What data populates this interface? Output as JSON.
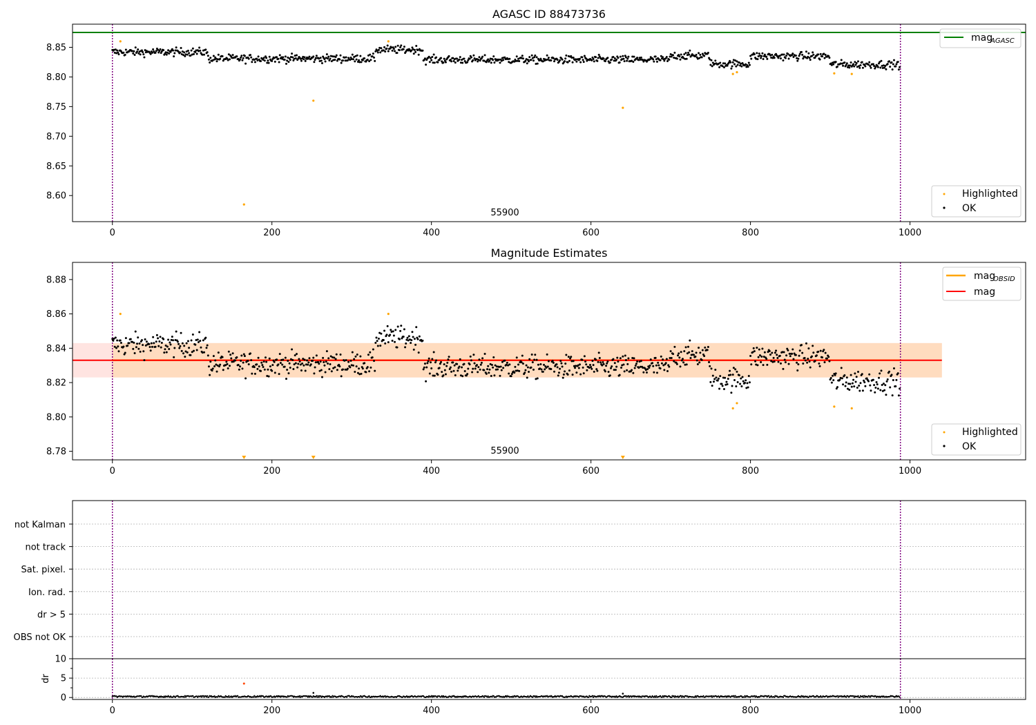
{
  "figure": {
    "background": "#ffffff",
    "colors": {
      "ok": "#000000",
      "highlighted": "#ffa500",
      "mag_agasc": "#008000",
      "mag_obsid": "#ffa500",
      "mag": "#ff0000",
      "band_fill": "#ffdab9",
      "band_fill_outer": "#ffe4e1",
      "obs_boundary": "#800080",
      "grid": "#b0b0b0"
    }
  },
  "chart_data": [
    {
      "type": "scatter",
      "title": "AGASC ID 88473736",
      "xlabel": "",
      "ylabel": "",
      "xlim": [
        -50,
        1145
      ],
      "ylim": [
        8.556,
        8.889
      ],
      "x_ticks": [
        "0",
        "200",
        "400",
        "600",
        "800",
        "1000"
      ],
      "y_ticks": [
        "8.60",
        "8.65",
        "8.70",
        "8.75",
        "8.80",
        "8.85"
      ],
      "hlines": [
        {
          "name": "mag_AGASC",
          "y": 8.875
        }
      ],
      "obs_boundaries": [
        0,
        988
      ],
      "obs_label": "55900",
      "ok_series": {
        "name": "OK",
        "n": 988,
        "baseline": 8.833,
        "trend": "mostly 8.82–8.85, dip to ~8.81–8.82 near x 760–800 and 920–980"
      },
      "highlighted": {
        "name": "Highlighted",
        "points": [
          [
            10,
            8.86
          ],
          [
            165,
            8.585
          ],
          [
            252,
            8.76
          ],
          [
            346,
            8.86
          ],
          [
            640,
            8.748
          ],
          [
            778,
            8.805
          ],
          [
            783,
            8.808
          ],
          [
            905,
            8.806
          ],
          [
            927,
            8.805
          ]
        ]
      },
      "legend": {
        "placement": "upper-right (line) / lower-right (markers)",
        "entries": [
          "mag_AGASC",
          "Highlighted",
          "OK"
        ]
      }
    },
    {
      "type": "scatter",
      "title": "Magnitude Estimates",
      "xlabel": "",
      "ylabel": "",
      "xlim": [
        -50,
        1145
      ],
      "ylim": [
        8.775,
        8.89
      ],
      "x_ticks": [
        "0",
        "200",
        "400",
        "600",
        "800",
        "1000"
      ],
      "y_ticks": [
        "8.78",
        "8.80",
        "8.82",
        "8.84",
        "8.86",
        "8.88"
      ],
      "hlines": [
        {
          "name": "mag",
          "y": 8.833
        },
        {
          "name": "mag_OBSID",
          "y": 8.833
        }
      ],
      "band": {
        "low": 8.823,
        "high": 8.843,
        "x_range": [
          0,
          1040
        ]
      },
      "obs_boundaries": [
        0,
        988
      ],
      "obs_label": "55900",
      "highlighted": {
        "name": "Highlighted",
        "points": [
          [
            10,
            8.86
          ],
          [
            346,
            8.86
          ],
          [
            778,
            8.805
          ],
          [
            783,
            8.808
          ],
          [
            905,
            8.806
          ],
          [
            927,
            8.805
          ]
        ],
        "below_range": [
          165,
          252,
          640
        ]
      },
      "legend": {
        "placement": "upper-right (lines) / lower-right (markers)",
        "entries": [
          "mag_OBSID",
          "mag",
          "Highlighted",
          "OK"
        ]
      }
    },
    {
      "type": "scatter",
      "title": "",
      "categories": [
        "not Kalman",
        "not track",
        "Sat. pixel.",
        "Ion. rad.",
        "dr > 5",
        "OBS not OK"
      ],
      "flags_set": [],
      "xlim": [
        -50,
        1145
      ],
      "obs_boundaries": [
        0,
        988
      ]
    },
    {
      "type": "scatter",
      "title": "",
      "ylabel": "dr",
      "xlim": [
        -50,
        1145
      ],
      "ylim": [
        -0.5,
        10
      ],
      "x_ticks": [
        "0",
        "200",
        "400",
        "600",
        "800",
        "1000"
      ],
      "y_ticks": [
        "0",
        "5",
        "10"
      ],
      "obs_boundaries": [
        0,
        988
      ],
      "baseline": 0.25,
      "outliers": [
        [
          165,
          3.6
        ],
        [
          252,
          1.2
        ],
        [
          640,
          1.0
        ]
      ]
    }
  ],
  "labels": {
    "title1": "AGASC ID 88473736",
    "title2": "Magnitude Estimates",
    "obs1": "55900",
    "obs2": "55900",
    "legend1_line": "mag",
    "legend1_line_sub": "AGASC",
    "legend2_line1": "mag",
    "legend2_line1_sub": "OBSID",
    "legend2_line2": "mag",
    "legend_hl": "Highlighted",
    "legend_ok": "OK",
    "dr_ylabel": "dr"
  }
}
